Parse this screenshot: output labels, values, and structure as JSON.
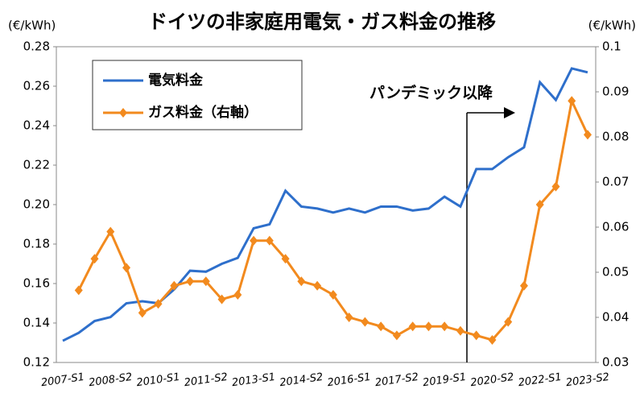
{
  "chart_data": {
    "type": "line",
    "title": "ドイツの非家庭用電気・ガス料金の推移",
    "y_label": "(€/kWh)",
    "y2_label": "(€/kWh)",
    "annotation": "パンデミック以降",
    "categories": [
      "2007-S1",
      null,
      null,
      "2008-S2",
      null,
      null,
      "2010-S1",
      null,
      null,
      "2011-S2",
      null,
      null,
      "2013-S1",
      null,
      null,
      "2014-S2",
      null,
      null,
      "2016-S1",
      null,
      null,
      "2017-S2",
      null,
      null,
      "2019-S1",
      null,
      null,
      "2020-S2",
      null,
      null,
      "2022-S1",
      null,
      null,
      "2023-S2"
    ],
    "series": [
      {
        "name": "電気料金",
        "color": "#2e6fcb",
        "values": [
          0.131,
          0.135,
          0.141,
          0.143,
          0.15,
          0.151,
          0.15,
          0.157,
          0.1665,
          0.166,
          0.17,
          0.173,
          0.188,
          0.19,
          0.207,
          0.199,
          0.198,
          0.196,
          0.198,
          0.196,
          0.199,
          0.199,
          0.197,
          0.198,
          0.204,
          0.199,
          0.218,
          0.218,
          0.224,
          0.229,
          0.262,
          0.253,
          0.269,
          0.267
        ]
      },
      {
        "name": "ガス料金（右軸）",
        "color": "#f28a1e",
        "axis": "y2",
        "values": [
          null,
          0.046,
          0.053,
          0.059,
          0.051,
          0.041,
          0.043,
          0.047,
          0.048,
          0.048,
          0.044,
          0.045,
          0.057,
          0.057,
          0.053,
          0.048,
          0.047,
          0.045,
          0.04,
          0.039,
          0.038,
          0.036,
          0.038,
          0.038,
          0.038,
          0.037,
          0.036,
          0.035,
          0.039,
          0.047,
          0.065,
          0.069,
          0.088,
          0.0805
        ]
      }
    ],
    "ylim": [
      0.12,
      0.28
    ],
    "yticks": [
      0.12,
      0.14,
      0.16,
      0.18,
      {
        "value": 0.2,
        "label": "0.20"
      },
      0.22,
      0.24,
      0.26,
      0.28
    ],
    "y2lim": [
      0.03,
      0.1
    ],
    "y2ticks": [
      0.03,
      0.04,
      0.05,
      0.06,
      0.07,
      0.08,
      0.09,
      0.1
    ]
  }
}
